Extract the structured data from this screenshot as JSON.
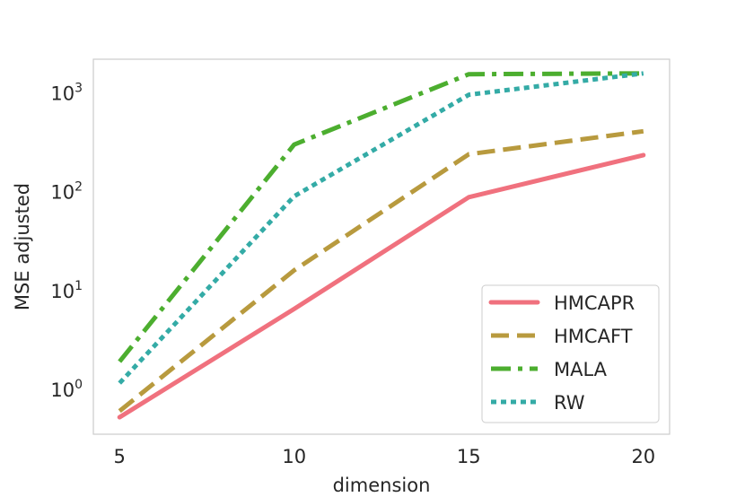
{
  "chart_data": {
    "type": "line",
    "title": "",
    "xlabel": "dimension",
    "ylabel": "MSE adjusted",
    "yscale": "log",
    "x": [
      5,
      10,
      15,
      20
    ],
    "xlim": [
      4.25,
      20.75
    ],
    "ylim": [
      0.35,
      2200
    ],
    "xticks": [
      "5",
      "10",
      "15",
      "20"
    ],
    "yticks": [
      {
        "value": 1,
        "base": "10",
        "exp": "0"
      },
      {
        "value": 10,
        "base": "10",
        "exp": "1"
      },
      {
        "value": 100,
        "base": "10",
        "exp": "2"
      },
      {
        "value": 1000,
        "base": "10",
        "exp": "3"
      }
    ],
    "grid": false,
    "legend_position": "bottom-right",
    "series": [
      {
        "name": "HMCAPR",
        "values": [
          0.52,
          6.5,
          88,
          235
        ],
        "color": "#f0717e",
        "style": "solid"
      },
      {
        "name": "HMCAFT",
        "values": [
          0.6,
          16,
          240,
          410
        ],
        "color": "#b89a3e",
        "style": "dashed"
      },
      {
        "name": "MALA",
        "values": [
          1.9,
          300,
          1550,
          1580
        ],
        "color": "#4cae2f",
        "style": "dashdot"
      },
      {
        "name": "RW",
        "values": [
          1.15,
          90,
          960,
          1580
        ],
        "color": "#34aba6",
        "style": "dotted"
      }
    ]
  }
}
